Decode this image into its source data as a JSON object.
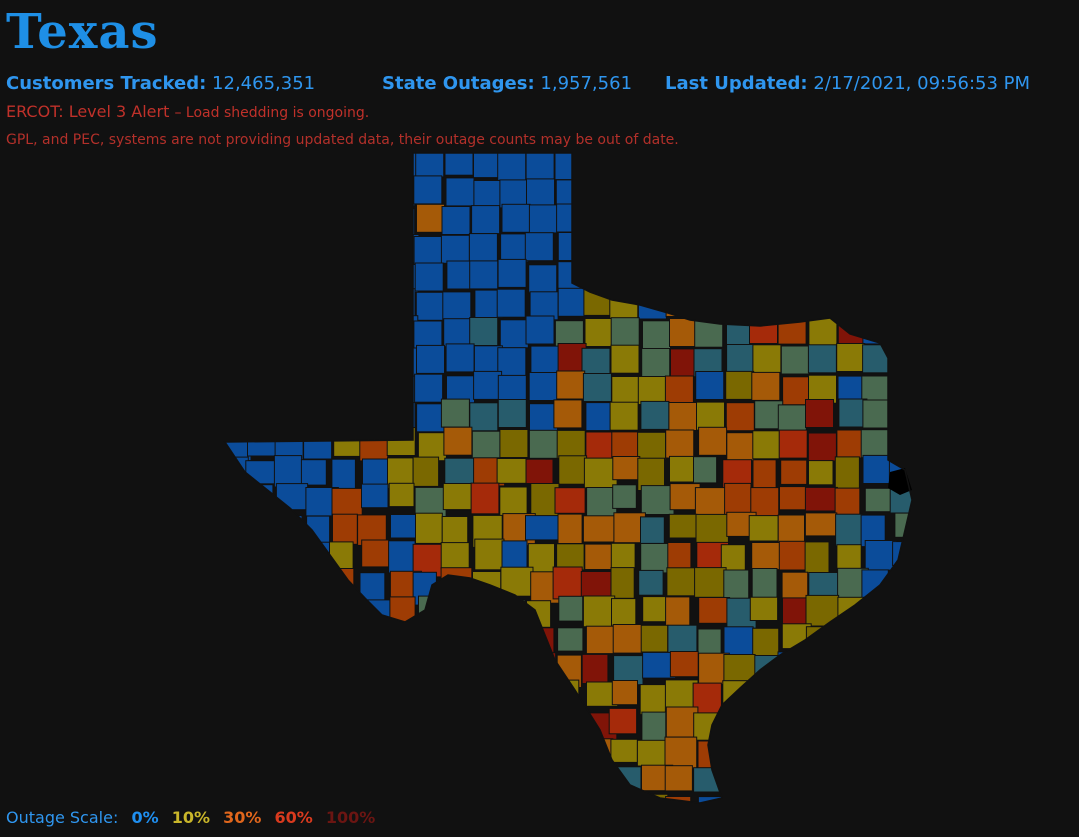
{
  "state": {
    "title": "Texas"
  },
  "stats": {
    "customers": {
      "label": "Customers Tracked:",
      "value": "12,465,351"
    },
    "outages": {
      "label": "State Outages:",
      "value": "1,957,561"
    },
    "updated": {
      "label": "Last Updated:",
      "value": "2/17/2021, 09:56:53 PM"
    }
  },
  "alert": {
    "level": "ERCOT: Level 3 Alert",
    "detail": "– Load shedding is ongoing."
  },
  "notice": "GPL, and PEC, systems are not providing updated data, their outage counts may be out of date.",
  "scale": {
    "label": "Outage Scale:",
    "steps": [
      {
        "label": "0%",
        "color": "#1f8ff0"
      },
      {
        "label": "10%",
        "color": "#c9b62a"
      },
      {
        "label": "30%",
        "color": "#e0661c"
      },
      {
        "label": "60%",
        "color": "#d93a1e"
      },
      {
        "label": "100%",
        "color": "#6b1512"
      }
    ]
  },
  "colors": {
    "background": "#111111",
    "blue": "#0b4c9a",
    "teal": "#275c6c",
    "green": "#4a6a50",
    "olive": "#8a7a06",
    "olive_dark": "#7a6800",
    "orange": "#a55a08",
    "orange_red": "#9e3c04",
    "red": "#a52a0a",
    "dark_red": "#801408",
    "black": "#000000"
  }
}
